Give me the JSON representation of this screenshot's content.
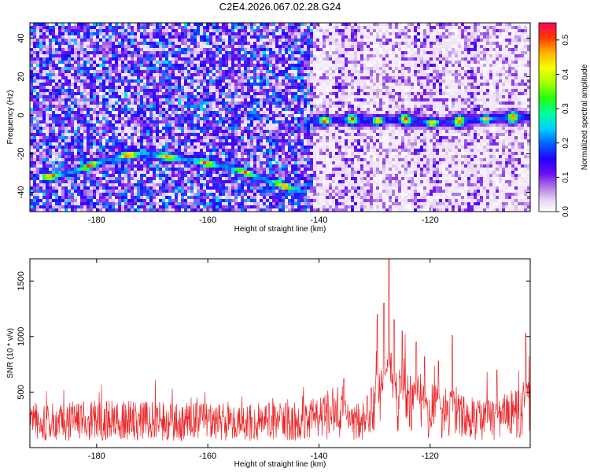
{
  "title": "C2E4.2026.067.02.28.G24",
  "chart_data": [
    {
      "type": "heatmap",
      "xlabel": "Height of straight line (km)",
      "ylabel": "Frequency (Hz)",
      "xlim": [
        -192,
        -102
      ],
      "ylim": [
        -50,
        48
      ],
      "xticks": [
        "-180",
        "-160",
        "-140",
        "-120"
      ],
      "yticks": [
        "-40",
        "-20",
        "0",
        "20",
        "40"
      ],
      "colorbar": {
        "label": "Normalized spectral amplitude",
        "range": [
          0,
          0.55
        ],
        "ticks": [
          "0.0",
          "0.1",
          "0.2",
          "0.3",
          "0.4",
          "0.5"
        ]
      },
      "ridges": [
        {
          "name": "descending track",
          "x": [
            -189,
            -185,
            -180,
            -175,
            -172,
            -166,
            -160,
            -155,
            -150,
            -145,
            -142
          ],
          "y": [
            -32,
            -30,
            -25,
            -21,
            -20,
            -22,
            -25,
            -28,
            -33,
            -38,
            -40
          ]
        },
        {
          "name": "flat track",
          "x": [
            -140,
            -135,
            -130,
            -125,
            -120,
            -115,
            -110,
            -105
          ],
          "y": [
            -3,
            -2,
            -3,
            -2,
            -4,
            -3,
            -2,
            -1
          ]
        }
      ]
    },
    {
      "type": "line",
      "xlabel": "Height of straight line (km)",
      "ylabel": "SNR (10 * v/v)",
      "xlim": [
        -192,
        -102
      ],
      "ylim": [
        0,
        1700
      ],
      "xticks": [
        "-180",
        "-160",
        "-140",
        "-120"
      ],
      "yticks": [
        "500",
        "1000",
        "1500"
      ],
      "series": [
        {
          "name": "SNR",
          "color": "#e8282a",
          "baseline": [
            {
              "x": -192,
              "y": 230
            },
            {
              "x": -180,
              "y": 250
            },
            {
              "x": -170,
              "y": 240
            },
            {
              "x": -160,
              "y": 230
            },
            {
              "x": -150,
              "y": 235
            },
            {
              "x": -140,
              "y": 260
            },
            {
              "x": -137,
              "y": 330
            },
            {
              "x": -134,
              "y": 200
            },
            {
              "x": -131,
              "y": 300
            },
            {
              "x": -128,
              "y": 450
            },
            {
              "x": -125,
              "y": 400
            },
            {
              "x": -122,
              "y": 340
            },
            {
              "x": -119,
              "y": 330
            },
            {
              "x": -116,
              "y": 290
            },
            {
              "x": -112,
              "y": 250
            },
            {
              "x": -108,
              "y": 240
            },
            {
              "x": -104,
              "y": 330
            },
            {
              "x": -102,
              "y": 380
            }
          ],
          "peaks": [
            {
              "x": -127.4,
              "y": 1700
            },
            {
              "x": -128.3,
              "y": 1300
            },
            {
              "x": -126.5,
              "y": 1150
            },
            {
              "x": -129.5,
              "y": 1200
            },
            {
              "x": -125.0,
              "y": 1050
            },
            {
              "x": -122.5,
              "y": 950
            },
            {
              "x": -116.0,
              "y": 1010
            },
            {
              "x": -102.8,
              "y": 1030
            },
            {
              "x": -135.5,
              "y": 620
            },
            {
              "x": -121.0,
              "y": 820
            },
            {
              "x": -118.5,
              "y": 780
            },
            {
              "x": -108.0,
              "y": 700
            }
          ]
        }
      ]
    }
  ]
}
